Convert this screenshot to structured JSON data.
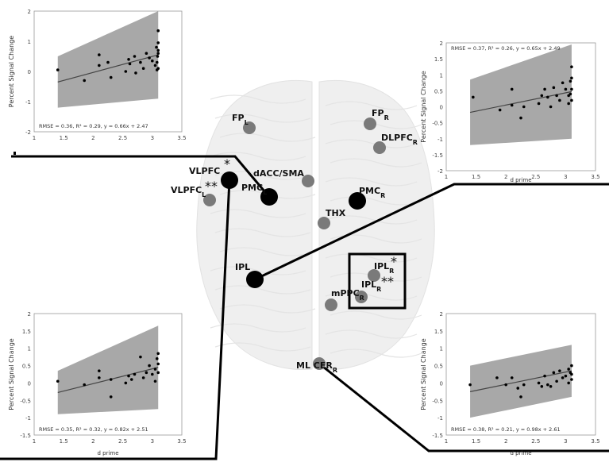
{
  "colors": {
    "node_large": "#000000",
    "node_small": "#7a7a7a",
    "band": "#a8a8a8",
    "brain": "#efefef",
    "connector": "#000000"
  },
  "brain_regions": [
    {
      "id": "fp-l",
      "label": "FP",
      "sub": "L",
      "size": "small"
    },
    {
      "id": "fp-r",
      "label": "FP",
      "sub": "R",
      "size": "small"
    },
    {
      "id": "dlpfc-r",
      "label": "DLPFC",
      "sub": "R",
      "size": "small"
    },
    {
      "id": "vlpfc-star",
      "label": "VLPFC",
      "sub": "",
      "mark": "*",
      "size": "large"
    },
    {
      "id": "vlpfc-l",
      "label": "VLPFC",
      "sub": "L",
      "mark": "**",
      "size": "small"
    },
    {
      "id": "pmc-l",
      "label": "PMC",
      "sub": "L",
      "size": "large"
    },
    {
      "id": "dacc-sma",
      "label": "dACC/SMA",
      "sub": "",
      "size": "small"
    },
    {
      "id": "pmc-r",
      "label": "PMC",
      "sub": "R",
      "size": "large"
    },
    {
      "id": "thx",
      "label": "THX",
      "sub": "",
      "size": "small"
    },
    {
      "id": "ipl",
      "label": "IPL",
      "sub": "",
      "size": "large"
    },
    {
      "id": "ipl-r-star",
      "label": "IPL",
      "sub": "R",
      "mark": "*",
      "size": "small"
    },
    {
      "id": "ipl-r-dstar",
      "label": "IPL",
      "sub": "R",
      "mark": "**",
      "size": "small"
    },
    {
      "id": "mppc-r",
      "label": "mPPC",
      "sub": "R",
      "size": "small"
    },
    {
      "id": "cer-r",
      "label": "ML CER",
      "sub": "R",
      "size": "small"
    }
  ],
  "chart_data": [
    {
      "id": "top-left",
      "type": "scatter",
      "ylabel": "Percent Signal Change",
      "xlabel": "",
      "xlim": [
        1,
        3.5
      ],
      "ylim": [
        -2,
        2
      ],
      "xticks": [
        "1",
        "1.5",
        "2",
        "2.5",
        "3",
        "3.5"
      ],
      "yticks": [
        "2",
        "1",
        "0",
        "-1",
        "-2"
      ],
      "fit": {
        "slope": 0.66,
        "intercept": 2.47
      },
      "band_left": [
        -1.2,
        0.5
      ],
      "band_right": [
        -0.9,
        2.0
      ],
      "annotation": "RMSE = 0.36, R² = 0.29, y = 0.66x + 2.47",
      "points": [
        [
          1.4,
          0.05
        ],
        [
          1.85,
          -0.3
        ],
        [
          2.1,
          0.55
        ],
        [
          2.1,
          0.2
        ],
        [
          2.25,
          0.3
        ],
        [
          2.3,
          -0.2
        ],
        [
          2.55,
          0.0
        ],
        [
          2.6,
          0.4
        ],
        [
          2.62,
          0.25
        ],
        [
          2.7,
          0.5
        ],
        [
          2.72,
          -0.05
        ],
        [
          2.8,
          0.3
        ],
        [
          2.85,
          0.1
        ],
        [
          2.9,
          0.6
        ],
        [
          2.95,
          0.45
        ],
        [
          3.0,
          0.35
        ],
        [
          3.05,
          0.2
        ],
        [
          3.07,
          0.8
        ],
        [
          3.08,
          0.05
        ],
        [
          3.08,
          0.3
        ],
        [
          3.09,
          0.5
        ],
        [
          3.1,
          1.35
        ],
        [
          3.1,
          0.95
        ],
        [
          3.1,
          0.7
        ],
        [
          3.1,
          0.6
        ],
        [
          3.1,
          0.1
        ]
      ]
    },
    {
      "id": "top-right",
      "type": "scatter",
      "ylabel": "Percent Signal Change",
      "xlabel": "d prime",
      "xlim": [
        1,
        3.5
      ],
      "ylim": [
        -2,
        2
      ],
      "xticks": [
        "1",
        "1.5",
        "2",
        "2.5",
        "3",
        "3.5"
      ],
      "yticks": [
        "2",
        "1.5",
        "1",
        "0.5",
        "0",
        "-0.5",
        "-1",
        "-1.5",
        "-2"
      ],
      "fit": {
        "slope": 0.65,
        "intercept": 2.49
      },
      "band_left": [
        -1.2,
        0.85
      ],
      "band_right": [
        -1.0,
        1.95
      ],
      "annotation": "RMSE = 0.37, R² = 0.26, y = 0.65x + 2.49",
      "points": [
        [
          1.45,
          0.3
        ],
        [
          1.9,
          -0.1
        ],
        [
          2.1,
          0.55
        ],
        [
          2.1,
          0.05
        ],
        [
          2.25,
          -0.35
        ],
        [
          2.3,
          0.0
        ],
        [
          2.55,
          0.1
        ],
        [
          2.6,
          0.35
        ],
        [
          2.65,
          0.55
        ],
        [
          2.7,
          0.3
        ],
        [
          2.75,
          0.0
        ],
        [
          2.8,
          0.6
        ],
        [
          2.85,
          0.35
        ],
        [
          2.9,
          0.2
        ],
        [
          2.95,
          0.75
        ],
        [
          3.0,
          0.55
        ],
        [
          3.05,
          0.35
        ],
        [
          3.05,
          0.1
        ],
        [
          3.08,
          0.8
        ],
        [
          3.08,
          0.4
        ],
        [
          3.1,
          1.25
        ],
        [
          3.1,
          0.9
        ],
        [
          3.1,
          0.55
        ],
        [
          3.1,
          0.2
        ]
      ]
    },
    {
      "id": "bottom-left",
      "type": "scatter",
      "ylabel": "Percent Signal Change",
      "xlabel": "d prime",
      "xlim": [
        1,
        3.5
      ],
      "ylim": [
        -1.5,
        2
      ],
      "xticks": [
        "1",
        "1.5",
        "2",
        "2.5",
        "3",
        "3.5"
      ],
      "yticks": [
        "2",
        "1.5",
        "1",
        "0.5",
        "0",
        "-0.5",
        "-1",
        "-1.5"
      ],
      "fit": {
        "slope": 0.82,
        "intercept": 2.51
      },
      "band_left": [
        -0.9,
        0.35
      ],
      "band_right": [
        -0.75,
        1.65
      ],
      "annotation": "RMSE = 0.35, R² = 0.32, y = 0.82x + 2.51",
      "points": [
        [
          1.4,
          0.05
        ],
        [
          1.85,
          -0.05
        ],
        [
          2.1,
          0.35
        ],
        [
          2.1,
          0.15
        ],
        [
          2.3,
          0.1
        ],
        [
          2.3,
          -0.4
        ],
        [
          2.55,
          0.0
        ],
        [
          2.6,
          0.2
        ],
        [
          2.65,
          0.1
        ],
        [
          2.7,
          0.25
        ],
        [
          2.8,
          0.75
        ],
        [
          2.85,
          0.15
        ],
        [
          2.9,
          0.3
        ],
        [
          2.95,
          0.5
        ],
        [
          3.0,
          0.25
        ],
        [
          3.05,
          0.4
        ],
        [
          3.05,
          0.05
        ],
        [
          3.08,
          0.7
        ],
        [
          3.1,
          0.85
        ],
        [
          3.1,
          0.55
        ],
        [
          3.1,
          0.3
        ]
      ]
    },
    {
      "id": "bottom-right",
      "type": "scatter",
      "ylabel": "Percent Signal Change",
      "xlabel": "d prime",
      "xlim": [
        1,
        3.5
      ],
      "ylim": [
        -1.5,
        2
      ],
      "xticks": [
        "1",
        "1.5",
        "2",
        "2.5",
        "3",
        "3.5"
      ],
      "yticks": [
        "2",
        "1.5",
        "1",
        "0.5",
        "0",
        "-0.5",
        "-1",
        "-1.5"
      ],
      "fit": {
        "slope": 0.98,
        "intercept": 2.61
      },
      "band_left": [
        -1.0,
        0.5
      ],
      "band_right": [
        -0.4,
        1.1
      ],
      "annotation": "RMSE = 0.38, R² = 0.21, y = 0.98x + 2.61",
      "points": [
        [
          1.4,
          -0.05
        ],
        [
          1.85,
          0.15
        ],
        [
          2.0,
          -0.05
        ],
        [
          2.1,
          0.15
        ],
        [
          2.2,
          -0.15
        ],
        [
          2.25,
          -0.4
        ],
        [
          2.3,
          -0.05
        ],
        [
          2.55,
          0.0
        ],
        [
          2.6,
          -0.1
        ],
        [
          2.65,
          0.2
        ],
        [
          2.7,
          -0.05
        ],
        [
          2.75,
          -0.1
        ],
        [
          2.8,
          0.3
        ],
        [
          2.85,
          0.05
        ],
        [
          2.9,
          0.35
        ],
        [
          2.95,
          0.15
        ],
        [
          3.0,
          0.2
        ],
        [
          3.05,
          0.4
        ],
        [
          3.05,
          0.0
        ],
        [
          3.08,
          0.3
        ],
        [
          3.1,
          0.5
        ],
        [
          3.1,
          0.25
        ],
        [
          3.1,
          0.1
        ]
      ]
    }
  ]
}
